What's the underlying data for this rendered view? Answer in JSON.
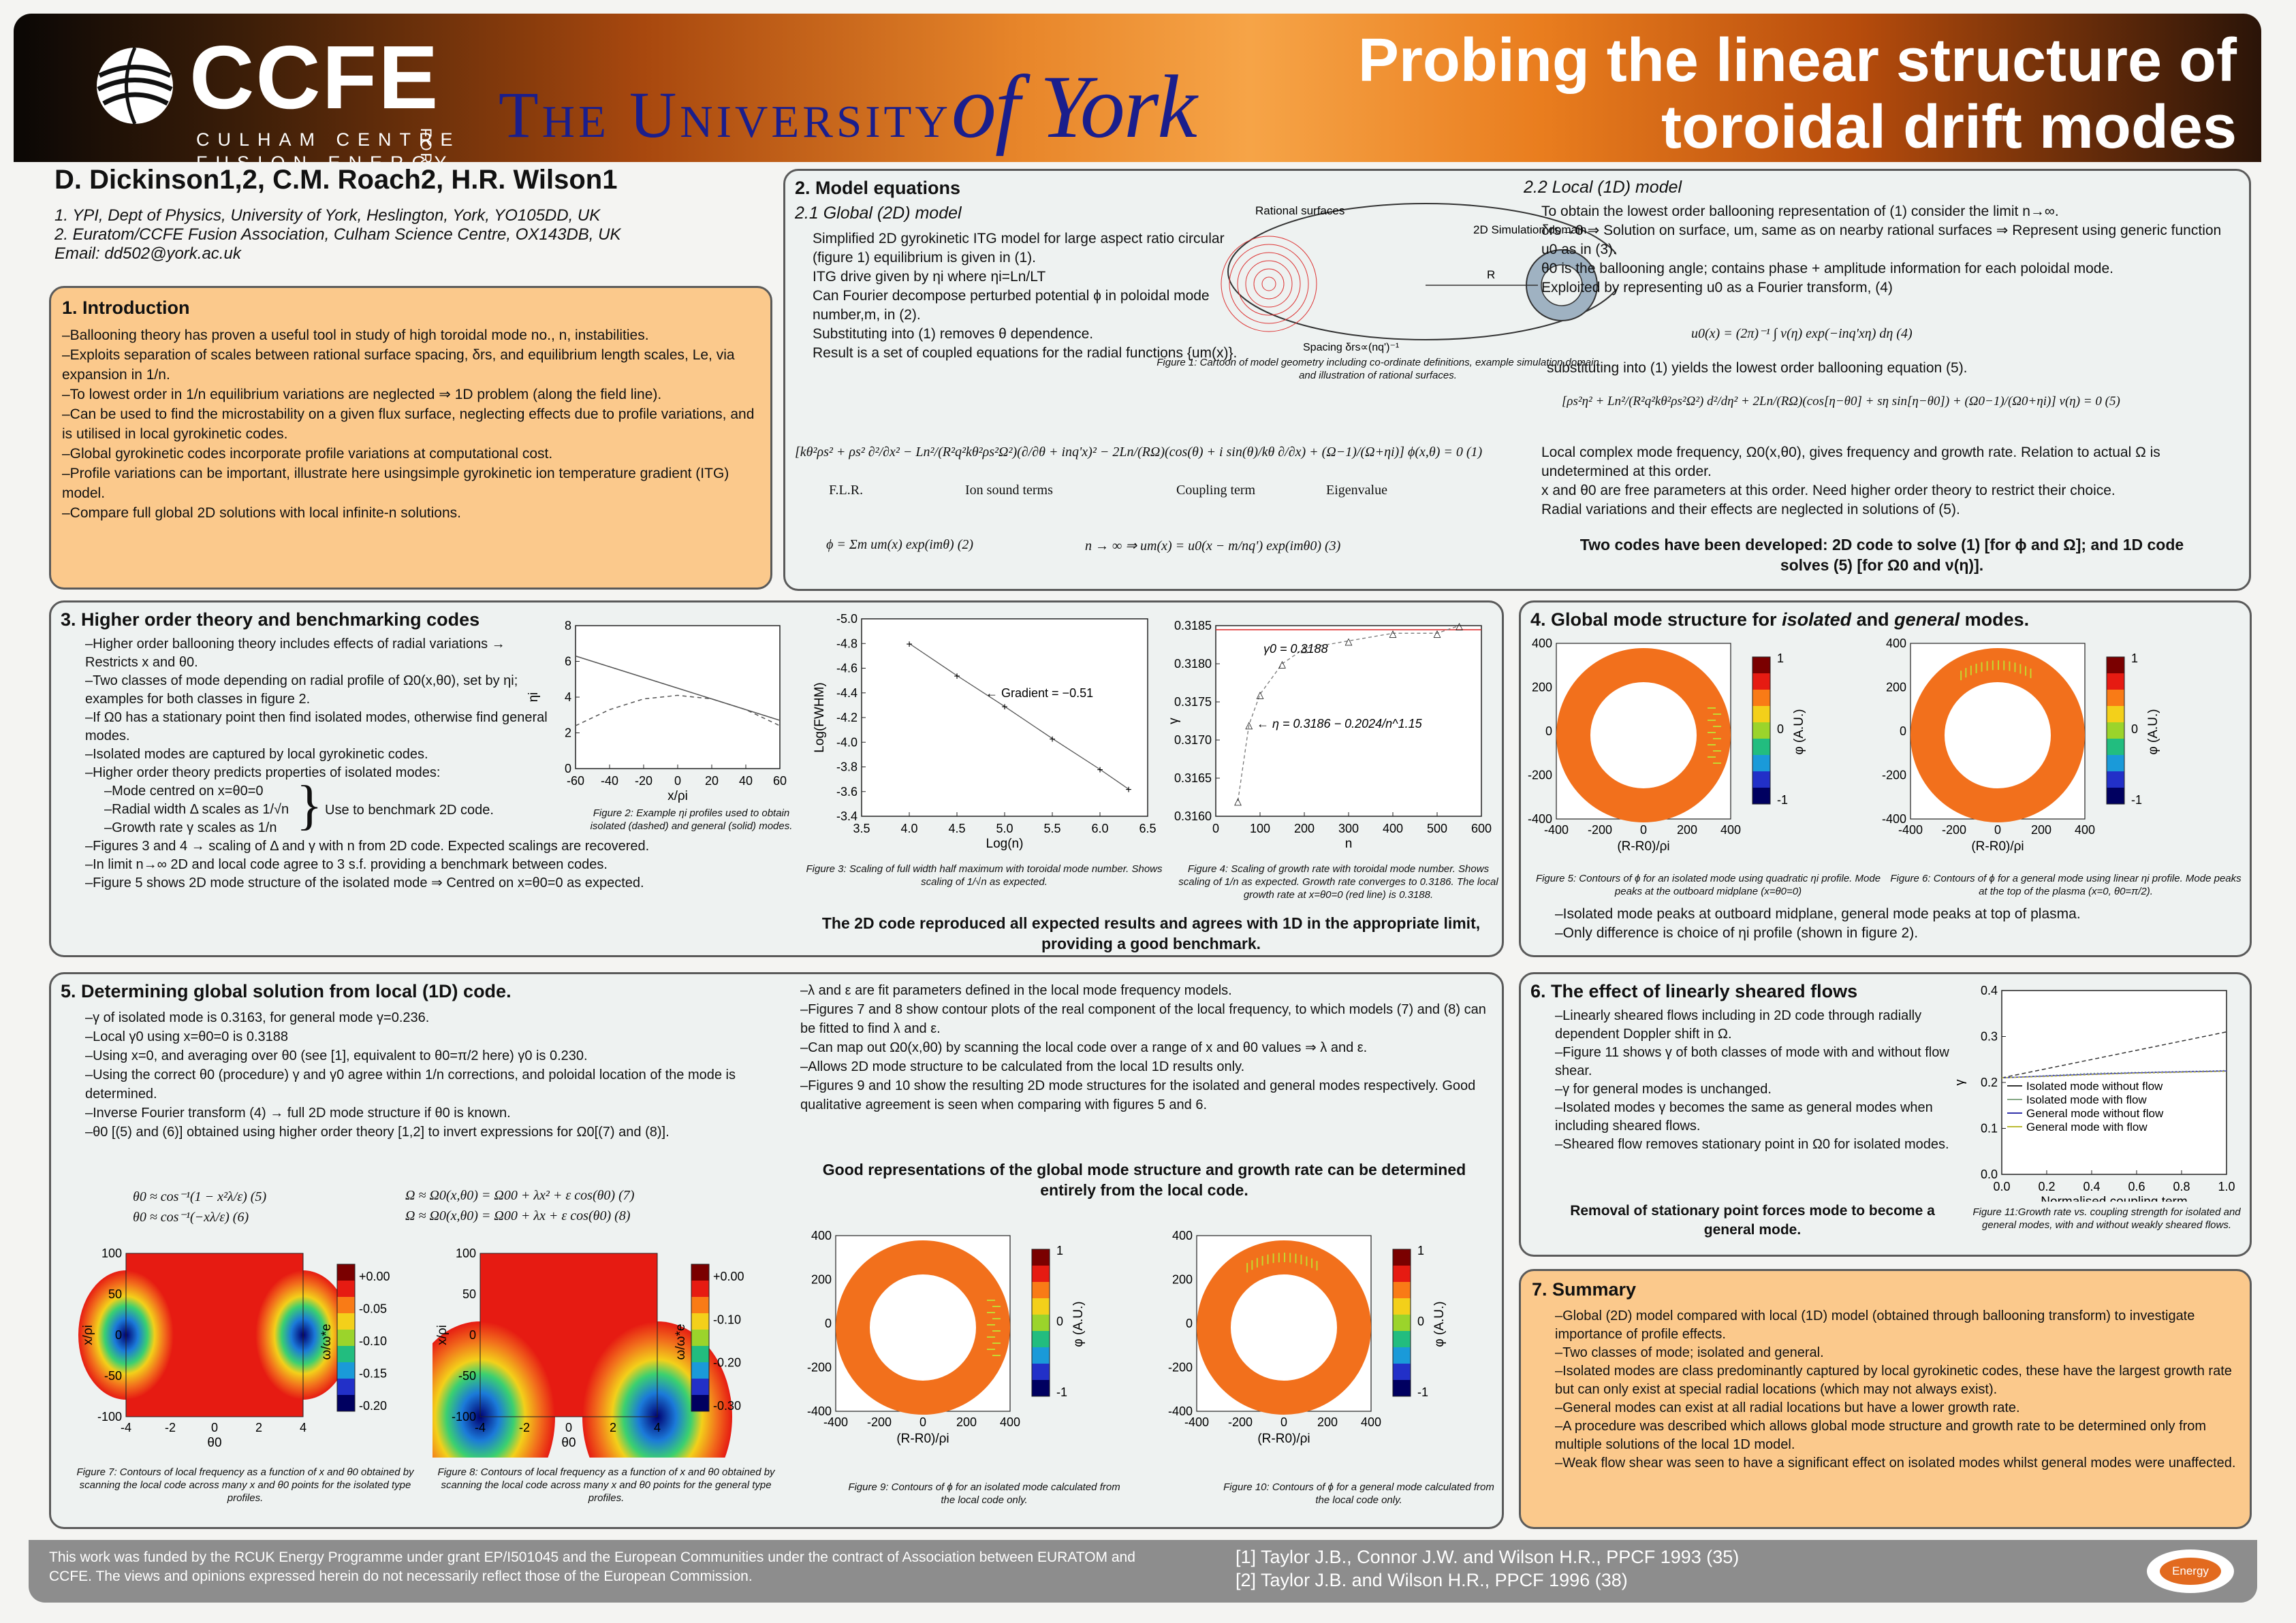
{
  "header": {
    "ccfe": "CCFE",
    "culham_line1": "CULHAM CENTRE",
    "culham_line2": "FUSION ENERGY",
    "for": "FOR",
    "york_1": "The University",
    "york_2": "of York",
    "title_line1": "Probing the linear structure of",
    "title_line2": "toroidal drift modes"
  },
  "authors": {
    "names": "D. Dickinson1,2, C.M. Roach2, H.R. Wilson1",
    "aff1": "1. YPI, Dept of Physics, University of York, Heslington, York, YO105DD, UK",
    "aff2": "2. Euratom/CCFE Fusion Association, Culham Science Centre, OX143DB, UK",
    "email": "Email: dd502@york.ac.uk"
  },
  "intro": {
    "title": "1. Introduction",
    "lines": [
      "–Ballooning theory has proven a useful tool in study of high toroidal mode no., n, instabilities.",
      "–Exploits separation of scales between rational surface spacing, δrs, and equilibrium length scales, Le, via expansion in 1/n.",
      "–To lowest order in 1/n equilibrium variations are neglected ⇒ 1D problem (along the field line).",
      "–Can be used to find the microstability on a given flux surface, neglecting effects due to profile variations, and is utilised in local gyrokinetic codes.",
      "–Global gyrokinetic codes incorporate profile variations at computational cost.",
      "–Profile variations can be important, illustrate here usingsimple gyrokinetic ion temperature gradient (ITG) model.",
      "–Compare full global 2D solutions with local infinite-n solutions."
    ]
  },
  "model": {
    "title": "2. Model equations",
    "sub1": "2.1 Global (2D) model",
    "bullets": [
      "Simplified 2D gyrokinetic ITG model for large aspect ratio circular (figure 1) equilibrium is given in (1).",
      "ITG drive given by ηi where ηi=Ln/LT",
      "Can Fourier decompose perturbed potential ϕ in poloidal mode number,m, in (2).",
      "Substituting into (1) removes θ dependence.",
      "Result is a set of coupled equations for the radial functions {um(x)}."
    ],
    "fig1_labels": [
      "Rational surfaces",
      "2D Simulation domain",
      "R",
      "Spacing δrs∝(nq')⁻¹"
    ],
    "fig1_caption": "Figure 1: Cartoon of model geometry including co-ordinate definitions, example simulation domain and illustration of rational surfaces.",
    "eq1": "[kθ²ρs² + ρs² ∂²/∂x² − Ln²/(R²q²kθ²ρs²Ω²)(∂/∂θ + inq'x)² − 2Ln/(RΩ)(cos(θ) + i sin(θ)/kθ ∂/∂x) + (Ω−1)/(Ω+ηi)] ϕ(x,θ) = 0   (1)",
    "eq1_labels": [
      "F.L.R.",
      "Ion sound terms",
      "Coupling term",
      "Eigenvalue"
    ],
    "eq2": "ϕ = Σm um(x) exp(imθ)   (2)",
    "eq3": "n → ∞ ⇒      um(x) = u0(x − m/nq') exp(imθ0)   (3)",
    "sub2": "2.2 Local (1D) model",
    "local_bullets": [
      "To obtain the lowest order ballooning representation of (1) consider the limit n→∞.",
      "δrs→0 ⇒ Solution on surface, um, same as on nearby rational surfaces ⇒ Represent using generic function u0 as in (3).",
      "θ0 is the ballooning angle; contains phase + amplitude information for each poloidal mode.",
      "Exploited by representing u0 as a Fourier transform, (4)"
    ],
    "eq4": "u0(x) = (2π)⁻¹ ∫ ν(η) exp(−inq'xη) dη     (4)",
    "sub_text": "substituting into (1) yields the lowest order ballooning equation (5).",
    "eq5": "[ρs²η² + Ln²/(R²q²kθ²ρs²Ω²) d²/dη² + 2Ln/(RΩ)(cos[η−θ0] + sη sin[η−θ0]) + (Ω0−1)/(Ω0+ηi)] ν(η) = 0     (5)",
    "local_bullets2": [
      "Local complex mode frequency, Ω0(x,θ0), gives frequency and growth rate. Relation to actual Ω is undetermined at this order.",
      "x and θ0 are free parameters at this order. Need higher order theory to restrict their choice.",
      "Radial variations and their effects are neglected in solutions of (5)."
    ],
    "conclusion": "Two codes have been developed: 2D code to solve (1) [for ϕ and Ω]; and 1D code solves (5) [for Ω0 and ν(η)]."
  },
  "higher": {
    "title": "3. Higher order theory and benchmarking codes",
    "lines": [
      "–Higher order ballooning theory includes effects of radial variations → Restricts x and θ0.",
      "–Two classes of mode depending on radial profile of Ω0(x,θ0), set by ηi; examples for both classes in figure 2.",
      "–If Ω0 has a stationary point then find isolated modes, otherwise find general modes.",
      "–Isolated modes are captured by local gyrokinetic codes.",
      "–Higher order theory predicts properties of isolated modes:"
    ],
    "sub": [
      "–Mode centred on x=θ0=0",
      "–Radial width Δ scales as 1/√n",
      "–Growth rate γ scales as 1/n"
    ],
    "brace_label": "Use to benchmark 2D code.",
    "lines2": [
      "–Figures 3 and 4 → scaling of Δ and γ with n from 2D code. Expected scalings are recovered.",
      "–In limit n→∞ 2D and local code agree to 3 s.f. providing a benchmark between codes.",
      "–Figure 5 shows 2D mode structure of the isolated mode ⇒ Centred on x=θ0=0 as expected."
    ],
    "fig2_caption": "Figure 2: Example ηi profiles used to obtain isolated (dashed) and general (solid) modes.",
    "fig3_caption": "Figure 3: Scaling of full width half maximum with toroidal mode number. Shows scaling of 1/√n as expected.",
    "fig4_caption": "Figure 4: Scaling of growth rate with toroidal mode number. Shows scaling of 1/n as expected. Growth rate converges to 0.3186. The local growth rate at x=θ0=0 (red line) is 0.3188.",
    "conclusion": "The 2D code reproduced all expected results and agrees with 1D in the appropriate limit, providing a good benchmark."
  },
  "global": {
    "title_pre": "4. Global mode structure for ",
    "title_iso": "isolated",
    "title_mid": " and ",
    "title_gen": "general",
    "title_post": " modes.",
    "fig5_caption": "Figure 5: Contours of ϕ for an isolated mode using quadratic ηi profile. Mode peaks at the outboard midplane (x=θ0=0)",
    "fig6_caption": "Figure 6: Contours of ϕ for a general mode using linear ηi profile. Mode peaks at the top of the plasma (x=0, θ0=π/2).",
    "lines": [
      "–Isolated mode peaks at outboard midplane, general mode peaks at top of plasma.",
      "–Only difference is choice of ηi profile (shown in figure 2)."
    ]
  },
  "determine": {
    "title": "5. Determining global solution from local (1D) code.",
    "lines": [
      "–γ of isolated mode is 0.3163, for general mode γ=0.236.",
      "–Local γ0 using x=θ0=0 is 0.3188",
      "–Using x=0, and averaging over θ0 (see [1], equivalent to θ0=π/2 here) γ0 is 0.230.",
      "–Using the correct θ0 (procedure) γ and γ0 agree within 1/n corrections, and poloidal location of the mode is determined.",
      "–Inverse Fourier transform (4) → full 2D mode structure if θ0 is known.",
      "–θ0 [(5) and (6)] obtained using higher order theory [1,2] to invert expressions for Ω0[(7) and (8)]."
    ],
    "eq5": "θ0 ≈ cos⁻¹(1 − x²λ/ε)   (5)",
    "eq6": "θ0 ≈ cos⁻¹(−xλ/ε)   (6)",
    "eq7": "Ω ≈ Ω0(x,θ0) = Ω00 + λx² + ε cos(θ0)   (7)",
    "eq8": "Ω ≈ Ω0(x,θ0) = Ω00 + λx + ε cos(θ0)   (8)",
    "lines2": [
      "–λ and ε are fit parameters defined in the local mode frequency models.",
      "–Figures 7 and 8 show contour plots of the real component of the local frequency, to which models (7) and (8) can be fitted to find λ and ε.",
      "–Can map out Ω0(x,θ0) by scanning the local code over a range of x and θ0 values ⇒ λ and ε.",
      "–Allows 2D mode structure to be calculated from the local 1D results only.",
      "–Figures 9 and 10 show the resulting 2D mode structures for the isolated and general modes respectively. Good qualitative agreement is seen when comparing with figures 5 and 6."
    ],
    "conclusion": "Good representations of the global mode structure and growth rate can be determined entirely from the local code.",
    "fig7_caption": "Figure 7: Contours of local frequency as a function of x and θ0 obtained by scanning the local code across many x and θ0 points for the isolated type profiles.",
    "fig8_caption": "Figure 8: Contours of local frequency as a function of x and θ0 obtained by scanning the local code across many x and θ0 points for the general type profiles.",
    "fig9_caption": "Figure 9: Contours of ϕ for an isolated mode calculated from the local code only.",
    "fig10_caption": "Figure 10: Contours of ϕ for a general mode calculated from the local code only."
  },
  "flows": {
    "title": "6. The effect of linearly sheared flows",
    "lines": [
      "–Linearly sheared flows including in 2D code through radially dependent Doppler shift in Ω.",
      "–Figure 11 shows γ of both classes of mode with and without flow shear.",
      "–γ for general modes is unchanged.",
      "–Isolated modes γ becomes the same as general modes when including sheared flows.",
      "–Sheared flow removes stationary point in Ω0 for isolated modes."
    ],
    "conclusion": "Removal of stationary point forces mode to become a general mode.",
    "fig11_caption": "Figure 11:Growth rate vs. coupling strength for isolated and general modes, with and without weakly sheared flows."
  },
  "summary": {
    "title": "7. Summary",
    "lines": [
      "–Global (2D) model compared with local (1D) model (obtained through ballooning transform) to investigate importance of profile effects.",
      "–Two classes of mode; isolated and general.",
      "–Isolated modes are class predominantly captured by local gyrokinetic codes, these have the largest growth rate but can only exist at special radial locations (which may not always exist).",
      "–General modes can exist at all radial locations but have a lower growth rate.",
      "–A procedure was described which allows global mode structure and growth rate to be determined only from multiple solutions of the local 1D model.",
      "–Weak flow shear was seen to have a significant effect on isolated modes whilst general modes were unaffected."
    ]
  },
  "footer": {
    "funding": "This work was funded by the RCUK Energy Programme under grant EP/I501045 and the European Communities under the contract of Association between EURATOM and CCFE. The views and opinions expressed herein do not necessarily reflect those of the European Commission.",
    "ref1": "[1] Taylor J.B., Connor J.W. and Wilson H.R., PPCF 1993 (35)",
    "ref2": "[2] Taylor J.B. and Wilson H.R., PPCF 1996 (38)",
    "badge": "Energy"
  },
  "chart_data": [
    {
      "type": "line",
      "id": "fig2",
      "xlabel": "x/ρi",
      "ylabel": "ηi",
      "x": [
        -60,
        -40,
        -20,
        0,
        20,
        40,
        60
      ],
      "ylim": [
        0,
        8
      ],
      "xticks": [
        "-60",
        "-40",
        "-20",
        "0",
        "20",
        "40",
        "60"
      ],
      "yticks": [
        "0",
        "2",
        "4",
        "6",
        "8"
      ],
      "series": [
        {
          "style": "solid",
          "values": [
            6.3,
            5.7,
            5.1,
            4.5,
            3.9,
            3.3,
            2.7
          ]
        },
        {
          "style": "dashed",
          "values": [
            2.4,
            3.3,
            3.9,
            4.1,
            3.9,
            3.3,
            2.4
          ]
        }
      ]
    },
    {
      "type": "scatter",
      "id": "fig3",
      "xlabel": "Log(n)",
      "ylabel": "Log(FWHM)",
      "xlim": [
        3.5,
        6.5
      ],
      "ylim": [
        -5.0,
        -3.4
      ],
      "xticks": [
        "3.5",
        "4.0",
        "4.5",
        "5.0",
        "5.5",
        "6.0",
        "6.5"
      ],
      "yticks": [
        "-3.4",
        "-3.6",
        "-3.8",
        "-4.0",
        "-4.2",
        "-4.4",
        "-4.6",
        "-4.8",
        "-5.0"
      ],
      "annotation": "← Gradient = −0.51",
      "x": [
        4.0,
        4.5,
        5.0,
        5.5,
        6.0,
        6.3
      ],
      "y": [
        -3.6,
        -3.86,
        -4.11,
        -4.37,
        -4.62,
        -4.78
      ]
    },
    {
      "type": "scatter",
      "id": "fig4",
      "xlabel": "n",
      "ylabel": "γ",
      "xlim": [
        0,
        600
      ],
      "ylim": [
        0.316,
        0.3185
      ],
      "xticks": [
        "0",
        "100",
        "200",
        "300",
        "400",
        "500",
        "600"
      ],
      "yticks": [
        "0.3160",
        "0.3165",
        "0.3170",
        "0.3175",
        "0.3180",
        "0.3185"
      ],
      "annotations": [
        "γ0 = 0.3188",
        "← η = 0.3186 − 0.2024/n^1.15"
      ],
      "reference_line": 0.3188,
      "x": [
        50,
        75,
        100,
        150,
        200,
        300,
        400,
        500,
        550
      ],
      "y": [
        0.3162,
        0.3172,
        0.3176,
        0.318,
        0.3182,
        0.3183,
        0.3184,
        0.3184,
        0.3185
      ]
    },
    {
      "type": "line",
      "id": "fig11",
      "xlabel": "Normalised coupling term",
      "ylabel": "γ",
      "xlim": [
        0,
        1
      ],
      "ylim": [
        0,
        0.4
      ],
      "xticks": [
        "0.0",
        "0.2",
        "0.4",
        "0.6",
        "0.8",
        "1.0"
      ],
      "yticks": [
        "0.0",
        "0.1",
        "0.2",
        "0.3",
        "0.4"
      ],
      "x": [
        0.0,
        0.2,
        0.4,
        0.6,
        0.8,
        1.0
      ],
      "series": [
        {
          "name": "Isolated mode without flow",
          "values": [
            0.21,
            0.23,
            0.25,
            0.27,
            0.29,
            0.31
          ]
        },
        {
          "name": "Isolated mode with flow",
          "values": [
            0.21,
            0.215,
            0.22,
            0.222,
            0.224,
            0.226
          ]
        },
        {
          "name": "General mode without flow",
          "values": [
            0.21,
            0.214,
            0.218,
            0.221,
            0.223,
            0.225
          ]
        },
        {
          "name": "General mode with flow",
          "values": [
            0.21,
            0.213,
            0.217,
            0.22,
            0.222,
            0.224
          ]
        }
      ]
    },
    {
      "type": "heatmap",
      "id": "contour_axes",
      "polar_xticks": [
        "-400",
        "-200",
        "0",
        "200",
        "400"
      ],
      "polar_yticks": [
        "400",
        "200",
        "0",
        "-200",
        "-400"
      ],
      "polar_xlabel": "(R-R0)/ρi",
      "polar_ylabel": "Z/ρi",
      "colorbar_label": "φ (A.U.)",
      "colorbar_ticks": [
        "1",
        "0",
        "-1"
      ],
      "freq_xticks": [
        "-4",
        "-2",
        "0",
        "2",
        "4"
      ],
      "freq_yticks": [
        "100",
        "50",
        "0",
        "-50",
        "-100"
      ],
      "freq_xlabel": "θ0",
      "freq_ylabel": "x/ρi",
      "freq_cbar_label": "ω/ω*e",
      "fig7_cbar": [
        "+0.00",
        "-0.05",
        "-0.10",
        "-0.15",
        "-0.20"
      ],
      "fig8_cbar": [
        "+0.00",
        "-0.10",
        "-0.20",
        "-0.30"
      ]
    }
  ],
  "colors": {
    "orange_panel": "#fbc98c",
    "light_panel": "#eef2f1",
    "york_blue": "#1a1e8c",
    "header_orange": "#e8862a"
  }
}
